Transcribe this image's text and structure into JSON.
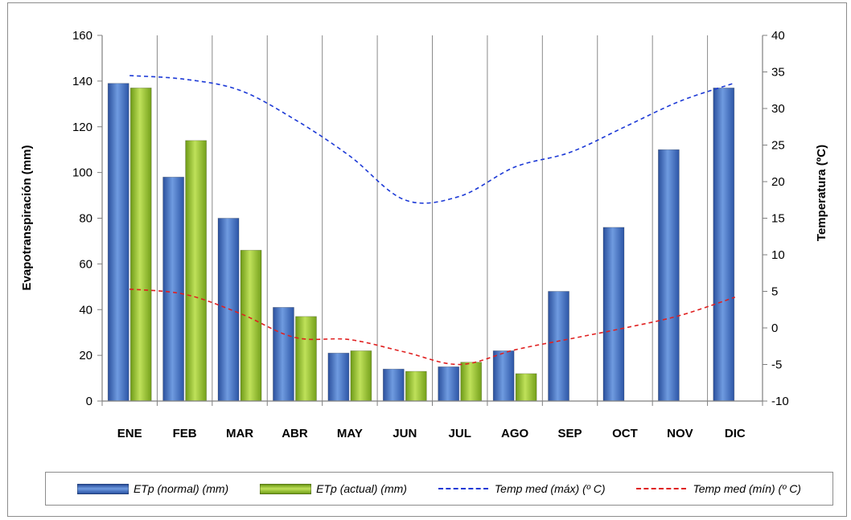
{
  "chart_data": {
    "type": "bar",
    "categories": [
      "ENE",
      "FEB",
      "MAR",
      "ABR",
      "MAY",
      "JUN",
      "JUL",
      "AGO",
      "SEP",
      "OCT",
      "NOV",
      "DIC"
    ],
    "series": [
      {
        "name": "ETp (normal) (mm)",
        "type": "bar",
        "axis": "left",
        "color": "#3f6fc4",
        "values": [
          139,
          98,
          80,
          41,
          21,
          14,
          15,
          22,
          48,
          76,
          110,
          137
        ]
      },
      {
        "name": "ETp (actual) (mm)",
        "type": "bar",
        "axis": "left",
        "color": "#8fbf2a",
        "values": [
          137,
          114,
          66,
          37,
          22,
          13,
          17,
          12,
          null,
          null,
          null,
          null
        ]
      },
      {
        "name": "Temp med (máx) (º C)",
        "type": "line",
        "style": "dashed",
        "axis": "right",
        "color": "#1c39d6",
        "values": [
          34.5,
          34,
          32.5,
          28.5,
          23.5,
          17.5,
          18,
          22,
          24,
          27.5,
          31,
          33.5
        ]
      },
      {
        "name": "Temp med (mín) (º C)",
        "type": "line",
        "style": "dashed",
        "axis": "right",
        "color": "#e02020",
        "values": [
          5.3,
          4.6,
          2,
          -1.3,
          -1.6,
          -3.3,
          -5,
          -3,
          -1.5,
          0,
          1.7,
          4.2
        ]
      }
    ],
    "ylabel": "Evapotranspiración  (mm)",
    "y2label": "Temperatura (ºC)",
    "ylim": [
      0,
      160
    ],
    "y2lim": [
      -10,
      40
    ],
    "yticks": [
      "0",
      "20",
      "40",
      "60",
      "80",
      "100",
      "120",
      "140",
      "160"
    ],
    "y2ticks": [
      "-10",
      "-5",
      "0",
      "5",
      "10",
      "15",
      "20",
      "25",
      "30",
      "35",
      "40"
    ],
    "grid": "vertical",
    "legend": "bottom"
  },
  "legend": {
    "items": [
      {
        "label": "ETp (normal) (mm)",
        "kind": "bar",
        "color": "#3f6fc4"
      },
      {
        "label": "ETp (actual) (mm)",
        "kind": "bar",
        "color": "#8fbf2a"
      },
      {
        "label": "Temp med (máx) (º C)",
        "kind": "line",
        "color": "#1c39d6"
      },
      {
        "label": "Temp med (mín) (º C)",
        "kind": "line",
        "color": "#e02020"
      }
    ]
  }
}
